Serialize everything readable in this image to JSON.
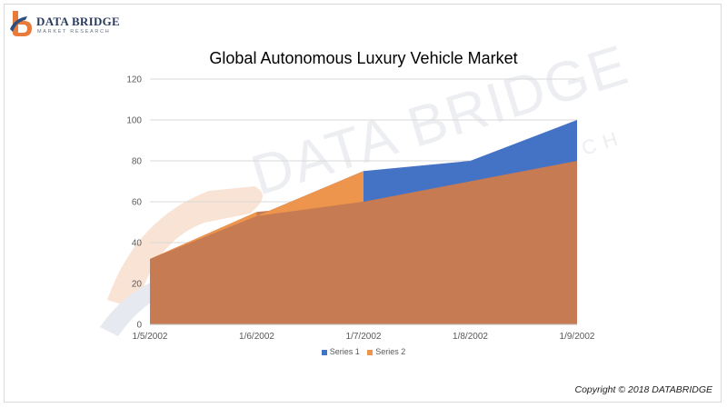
{
  "logo": {
    "name": "DATA BRIDGE",
    "tagline": "MARKET RESEARCH",
    "watermark_main": "DATA BRIDGE",
    "watermark_sub": "RCH"
  },
  "footer": {
    "copyright": "Copyright © 2018 DATABRIDGE"
  },
  "colors": {
    "series1": "#4472c4",
    "series2": "#c67b53",
    "series2_border": "#ed944d",
    "grid": "#d9d9d9"
  },
  "chart_data": {
    "type": "area",
    "title": "Global Autonomous Luxury Vehicle Market",
    "categories": [
      "1/5/2002",
      "1/6/2002",
      "1/7/2002",
      "1/8/2002",
      "1/9/2002"
    ],
    "series": [
      {
        "name": "Series 1",
        "values": [
          32,
          53,
          75,
          80,
          100
        ]
      },
      {
        "name": "Series 2",
        "values": [
          32,
          55,
          60,
          70,
          80
        ]
      }
    ],
    "ylim": [
      0,
      120
    ],
    "yticks": [
      0,
      20,
      40,
      60,
      80,
      100,
      120
    ],
    "xlabel": "",
    "ylabel": "",
    "grid": true,
    "legend": "bottom"
  }
}
